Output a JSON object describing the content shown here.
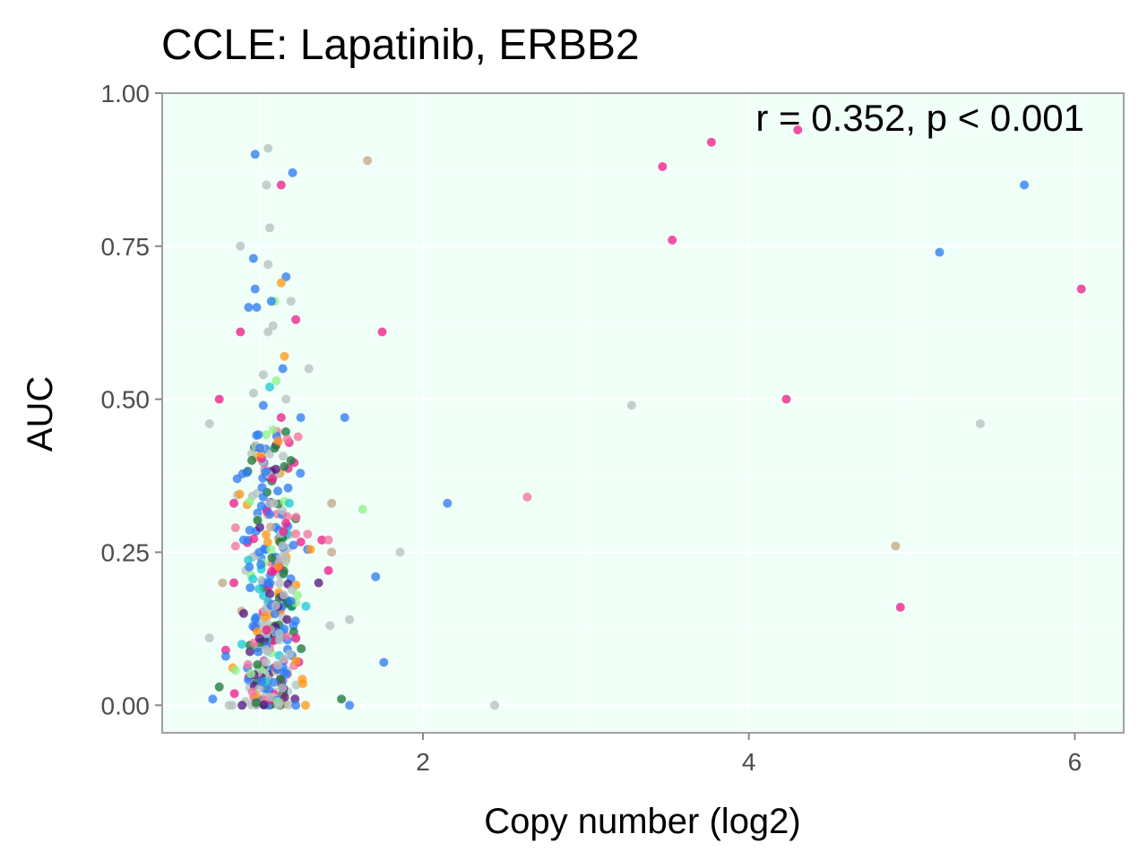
{
  "chart_data": {
    "type": "scatter",
    "title": "CCLE: Lapatinib, ERBB2",
    "xlabel": "Copy number (log2)",
    "ylabel": "AUC",
    "annotation": "r = 0.352, p < 0.001",
    "xlim": [
      0.4,
      6.3
    ],
    "ylim": [
      -0.045,
      1.0
    ],
    "xticks": [
      2,
      4,
      6
    ],
    "yticks": [
      0.0,
      0.25,
      0.5,
      0.75,
      1.0
    ],
    "xtick_labels": [
      "2",
      "4",
      "6"
    ],
    "ytick_labels": [
      "0.00",
      "0.25",
      "0.50",
      "0.75",
      "1.00"
    ],
    "grid": true,
    "legend": "none",
    "panel_background": "#f0fff7",
    "point_opacity": 0.78,
    "colors": {
      "grey": "#b5c2c2",
      "blue": "#2f7ef5",
      "pink": "#f0208c",
      "light_pink": "#f5749e",
      "green": "#1f7a3d",
      "purple": "#5a1a85",
      "orange": "#ff9a1e",
      "tan": "#c4a88a",
      "light_green": "#8ff28a",
      "cyan": "#20c9d6"
    },
    "highlight_points": [
      {
        "x": 0.69,
        "y": 0.46,
        "color": "grey"
      },
      {
        "x": 0.75,
        "y": 0.5,
        "color": "pink"
      },
      {
        "x": 0.88,
        "y": 0.61,
        "color": "pink"
      },
      {
        "x": 0.88,
        "y": 0.75,
        "color": "grey"
      },
      {
        "x": 0.97,
        "y": 0.9,
        "color": "blue"
      },
      {
        "x": 1.05,
        "y": 0.91,
        "color": "grey"
      },
      {
        "x": 1.13,
        "y": 0.85,
        "color": "pink"
      },
      {
        "x": 1.04,
        "y": 0.85,
        "color": "grey"
      },
      {
        "x": 1.06,
        "y": 0.78,
        "color": "grey"
      },
      {
        "x": 1.2,
        "y": 0.87,
        "color": "blue"
      },
      {
        "x": 1.66,
        "y": 0.89,
        "color": "tan"
      },
      {
        "x": 0.96,
        "y": 0.73,
        "color": "blue"
      },
      {
        "x": 1.05,
        "y": 0.72,
        "color": "grey"
      },
      {
        "x": 1.16,
        "y": 0.7,
        "color": "blue"
      },
      {
        "x": 1.13,
        "y": 0.69,
        "color": "orange"
      },
      {
        "x": 0.97,
        "y": 0.68,
        "color": "blue"
      },
      {
        "x": 1.09,
        "y": 0.66,
        "color": "light_green"
      },
      {
        "x": 1.07,
        "y": 0.66,
        "color": "blue"
      },
      {
        "x": 0.98,
        "y": 0.65,
        "color": "blue"
      },
      {
        "x": 0.93,
        "y": 0.65,
        "color": "blue"
      },
      {
        "x": 1.19,
        "y": 0.66,
        "color": "grey"
      },
      {
        "x": 1.22,
        "y": 0.63,
        "color": "pink"
      },
      {
        "x": 1.08,
        "y": 0.62,
        "color": "grey"
      },
      {
        "x": 1.05,
        "y": 0.61,
        "color": "grey"
      },
      {
        "x": 1.75,
        "y": 0.61,
        "color": "pink"
      },
      {
        "x": 1.15,
        "y": 0.57,
        "color": "orange"
      },
      {
        "x": 1.14,
        "y": 0.55,
        "color": "blue"
      },
      {
        "x": 1.3,
        "y": 0.55,
        "color": "grey"
      },
      {
        "x": 1.02,
        "y": 0.54,
        "color": "grey"
      },
      {
        "x": 1.1,
        "y": 0.53,
        "color": "light_green"
      },
      {
        "x": 0.96,
        "y": 0.51,
        "color": "grey"
      },
      {
        "x": 1.06,
        "y": 0.52,
        "color": "cyan"
      },
      {
        "x": 1.25,
        "y": 0.47,
        "color": "blue"
      },
      {
        "x": 1.52,
        "y": 0.47,
        "color": "blue"
      },
      {
        "x": 1.13,
        "y": 0.47,
        "color": "pink"
      },
      {
        "x": 1.02,
        "y": 0.49,
        "color": "blue"
      },
      {
        "x": 1.16,
        "y": 0.5,
        "color": "grey"
      },
      {
        "x": 1.08,
        "y": 0.45,
        "color": "light_green"
      },
      {
        "x": 1.11,
        "y": 0.43,
        "color": "orange"
      },
      {
        "x": 1.09,
        "y": 0.42,
        "color": "green"
      },
      {
        "x": 1.0,
        "y": 0.42,
        "color": "blue"
      },
      {
        "x": 0.95,
        "y": 0.4,
        "color": "green"
      },
      {
        "x": 1.19,
        "y": 0.4,
        "color": "green"
      },
      {
        "x": 1.15,
        "y": 0.39,
        "color": "green"
      },
      {
        "x": 0.92,
        "y": 0.38,
        "color": "blue"
      },
      {
        "x": 0.86,
        "y": 0.37,
        "color": "blue"
      },
      {
        "x": 1.11,
        "y": 0.35,
        "color": "blue"
      },
      {
        "x": 1.02,
        "y": 0.34,
        "color": "blue"
      },
      {
        "x": 1.18,
        "y": 0.33,
        "color": "cyan"
      },
      {
        "x": 1.06,
        "y": 0.33,
        "color": "grey"
      },
      {
        "x": 1.44,
        "y": 0.33,
        "color": "tan"
      },
      {
        "x": 1.63,
        "y": 0.32,
        "color": "light_green"
      },
      {
        "x": 2.15,
        "y": 0.33,
        "color": "blue"
      },
      {
        "x": 2.64,
        "y": 0.34,
        "color": "light_pink"
      },
      {
        "x": 3.28,
        "y": 0.49,
        "color": "grey"
      },
      {
        "x": 0.84,
        "y": 0.33,
        "color": "pink"
      },
      {
        "x": 0.85,
        "y": 0.29,
        "color": "light_pink"
      },
      {
        "x": 1.22,
        "y": 0.28,
        "color": "light_pink"
      },
      {
        "x": 1.38,
        "y": 0.27,
        "color": "pink"
      },
      {
        "x": 1.42,
        "y": 0.27,
        "color": "light_pink"
      },
      {
        "x": 0.85,
        "y": 0.26,
        "color": "light_pink"
      },
      {
        "x": 0.9,
        "y": 0.27,
        "color": "blue"
      },
      {
        "x": 1.86,
        "y": 0.25,
        "color": "grey"
      },
      {
        "x": 1.44,
        "y": 0.25,
        "color": "tan"
      },
      {
        "x": 1.42,
        "y": 0.22,
        "color": "pink"
      },
      {
        "x": 1.71,
        "y": 0.21,
        "color": "blue"
      },
      {
        "x": 1.36,
        "y": 0.2,
        "color": "purple"
      },
      {
        "x": 0.77,
        "y": 0.2,
        "color": "tan"
      },
      {
        "x": 0.84,
        "y": 0.2,
        "color": "pink"
      },
      {
        "x": 1.23,
        "y": 0.18,
        "color": "light_green"
      },
      {
        "x": 1.19,
        "y": 0.17,
        "color": "blue"
      },
      {
        "x": 0.9,
        "y": 0.15,
        "color": "purple"
      },
      {
        "x": 1.55,
        "y": 0.14,
        "color": "grey"
      },
      {
        "x": 1.43,
        "y": 0.13,
        "color": "grey"
      },
      {
        "x": 0.69,
        "y": 0.11,
        "color": "grey"
      },
      {
        "x": 1.22,
        "y": 0.11,
        "color": "pink"
      },
      {
        "x": 0.79,
        "y": 0.09,
        "color": "pink"
      },
      {
        "x": 0.79,
        "y": 0.08,
        "color": "blue"
      },
      {
        "x": 1.76,
        "y": 0.07,
        "color": "blue"
      },
      {
        "x": 0.75,
        "y": 0.03,
        "color": "green"
      },
      {
        "x": 0.71,
        "y": 0.01,
        "color": "blue"
      },
      {
        "x": 1.5,
        "y": 0.01,
        "color": "green"
      },
      {
        "x": 1.55,
        "y": 0.0,
        "color": "blue"
      },
      {
        "x": 2.44,
        "y": 0.0,
        "color": "grey"
      },
      {
        "x": 0.81,
        "y": 0.0,
        "color": "grey"
      },
      {
        "x": 0.83,
        "y": 0.0,
        "color": "grey"
      },
      {
        "x": 0.89,
        "y": 0.0,
        "color": "purple"
      },
      {
        "x": 1.28,
        "y": 0.0,
        "color": "orange"
      },
      {
        "x": 1.22,
        "y": 0.0,
        "color": "blue"
      },
      {
        "x": 3.47,
        "y": 0.88,
        "color": "pink"
      },
      {
        "x": 3.77,
        "y": 0.92,
        "color": "pink"
      },
      {
        "x": 4.3,
        "y": 0.94,
        "color": "pink"
      },
      {
        "x": 3.53,
        "y": 0.76,
        "color": "pink"
      },
      {
        "x": 5.17,
        "y": 0.74,
        "color": "blue"
      },
      {
        "x": 5.69,
        "y": 0.85,
        "color": "blue"
      },
      {
        "x": 6.04,
        "y": 0.68,
        "color": "pink"
      },
      {
        "x": 4.23,
        "y": 0.5,
        "color": "pink"
      },
      {
        "x": 5.42,
        "y": 0.46,
        "color": "grey"
      },
      {
        "x": 4.9,
        "y": 0.26,
        "color": "tan"
      },
      {
        "x": 4.93,
        "y": 0.16,
        "color": "pink"
      }
    ],
    "cluster": {
      "n": 360,
      "x_center": 1.07,
      "x_spread": 0.09,
      "y_max": 0.45,
      "color_weights": [
        [
          "grey",
          24
        ],
        [
          "blue",
          20
        ],
        [
          "green",
          10
        ],
        [
          "purple",
          8
        ],
        [
          "orange",
          8
        ],
        [
          "light_pink",
          6
        ],
        [
          "pink",
          6
        ],
        [
          "cyan",
          5
        ],
        [
          "light_green",
          5
        ],
        [
          "tan",
          3
        ]
      ]
    }
  }
}
